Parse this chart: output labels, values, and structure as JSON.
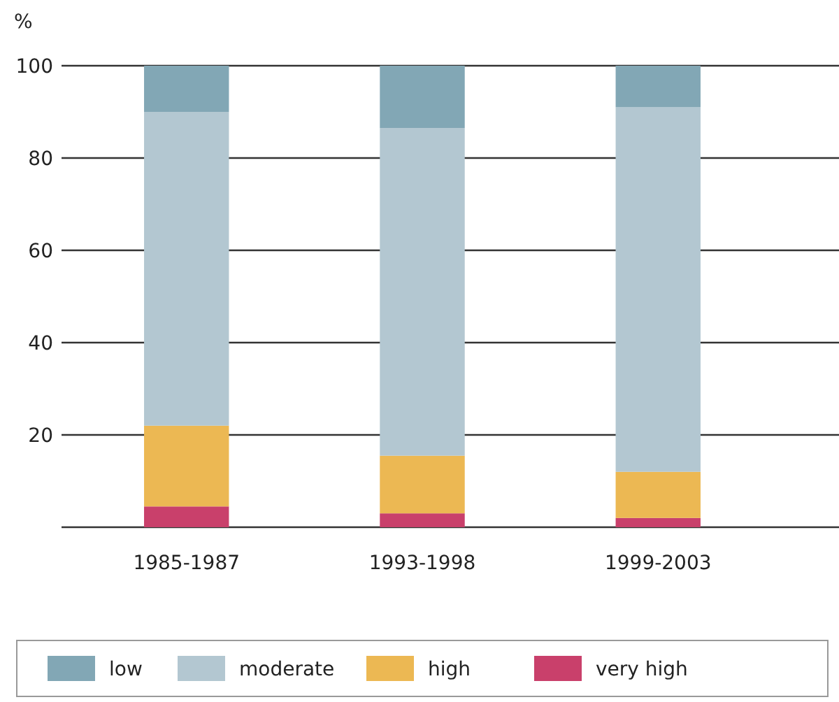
{
  "chart_data": {
    "type": "bar",
    "stacked": true,
    "ylabel": "%",
    "categories": [
      "1985-1987",
      "1993-1998",
      "1999-2003"
    ],
    "series": [
      {
        "name": "very high",
        "color": "#c9406b",
        "values": [
          4.5,
          3,
          2
        ]
      },
      {
        "name": "high",
        "color": "#ecb853",
        "values": [
          17.5,
          12.5,
          10
        ]
      },
      {
        "name": "moderate",
        "color": "#b3c7d1",
        "values": [
          68,
          71,
          79
        ]
      },
      {
        "name": "low",
        "color": "#82a7b5",
        "values": [
          10,
          13.5,
          9
        ]
      }
    ],
    "ylim": [
      0,
      100
    ],
    "yticks": [
      {
        "value": 0,
        "label": null
      },
      20,
      40,
      60,
      80,
      100
    ],
    "grid": "y",
    "legend": "bottom"
  }
}
